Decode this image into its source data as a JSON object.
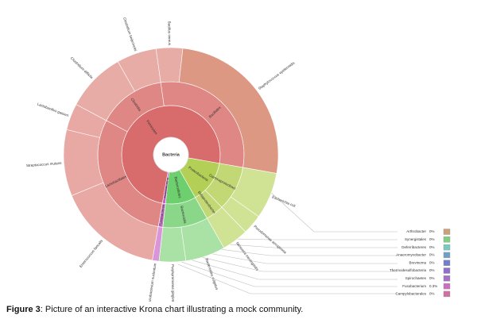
{
  "chart_data": {
    "type": "sunburst",
    "root": {
      "name": "Bacteria",
      "value": 100,
      "color": "#ffffff",
      "children": [
        {
          "name": "Proteobacteria",
          "value": 14,
          "color": "#b3cf55",
          "children": [
            {
              "name": "Gammaproteobacteria",
              "value": 10,
              "color": "#c2d874",
              "children": [
                {
                  "name": "Escherichia coli",
                  "value": 7,
                  "color": "#d0e395"
                },
                {
                  "name": "Pseudomonas aeruginosa",
                  "value": 3,
                  "color": "#d0e395"
                }
              ]
            },
            {
              "name": "Betaproteobacteria",
              "value": 4,
              "color": "#c2d874",
              "children": [
                {
                  "name": "Neisseria meningitidis",
                  "value": 4,
                  "color": "#d0e395"
                }
              ]
            }
          ]
        },
        {
          "name": "Bacteroidetes",
          "value": 10,
          "color": "#6dcf6d",
          "children": [
            {
              "name": "Bacteroidia",
              "value": 10,
              "color": "#8ad78a",
              "children": [
                {
                  "name": "Bacteroides vulgatus",
                  "value": 6,
                  "color": "#a9e2a4"
                },
                {
                  "name": "Porphyromonas gingivalis",
                  "value": 4,
                  "color": "#a9e2a4"
                }
              ]
            }
          ]
        },
        {
          "name": "Fusobacteria",
          "value": 1,
          "color": "#c65fc6",
          "children": [
            {
              "name": "Fusobacteriia",
              "value": 1,
              "color": "#d07ad0",
              "children": [
                {
                  "name": "Fusobacterium nucleatum",
                  "value": 1,
                  "color": "#d995d9"
                }
              ]
            }
          ]
        },
        {
          "name": "Firmicutes",
          "value": 75,
          "color": "#d86c6c",
          "children": [
            {
              "name": "Lactobacillales",
              "value": 30,
              "color": "#df8785",
              "children": [
                {
                  "name": "Enterococcus faecalis",
                  "value": 16,
                  "color": "#e8a8a3"
                },
                {
                  "name": "Streptococcus mutans",
                  "value": 10,
                  "color": "#e8a8a3"
                },
                {
                  "name": "Lactobacillus gasseri",
                  "value": 4,
                  "color": "#e8a8a3"
                }
              ]
            },
            {
              "name": "Clostridia",
              "value": 15,
              "color": "#df8785",
              "children": [
                {
                  "name": "Clostridium difficile",
                  "value": 9,
                  "color": "#e8aca6"
                },
                {
                  "name": "Clostridium beijerinckii",
                  "value": 6,
                  "color": "#e8aca6"
                }
              ]
            },
            {
              "name": "Bacillales",
              "value": 30,
              "color": "#df8785",
              "children": [
                {
                  "name": "Bacillus cereus",
                  "value": 4,
                  "color": "#e8aca6"
                },
                {
                  "name": "Staphylococcus epidermidis",
                  "value": 26,
                  "color": "#dc9882"
                }
              ]
            }
          ]
        }
      ]
    },
    "legend": [
      {
        "name": "Arthrobacter",
        "label": "0%",
        "color": "#c8a27a"
      },
      {
        "name": "Synergistales",
        "label": "0%",
        "color": "#7fcf7f"
      },
      {
        "name": "Deferribacteres",
        "label": "0%",
        "color": "#79c9c0"
      },
      {
        "name": "Anaeromyxobacter",
        "label": "0%",
        "color": "#6f9fc9"
      },
      {
        "name": "Brevinema",
        "label": "0%",
        "color": "#6f7fc9"
      },
      {
        "name": "Thermodesulfobacteria",
        "label": "0%",
        "color": "#8f6fc9"
      },
      {
        "name": "Spirochaetes",
        "label": "0%",
        "color": "#a66fc9"
      },
      {
        "name": "Fusobacterium",
        "label": "0.3%",
        "color": "#c96fc0"
      },
      {
        "name": "Campylobacterales",
        "label": "0%",
        "color": "#d070a0"
      }
    ]
  },
  "caption": {
    "label": "Figure 3",
    "text": ": Picture of an interactive Krona chart illustrating a mock community."
  }
}
